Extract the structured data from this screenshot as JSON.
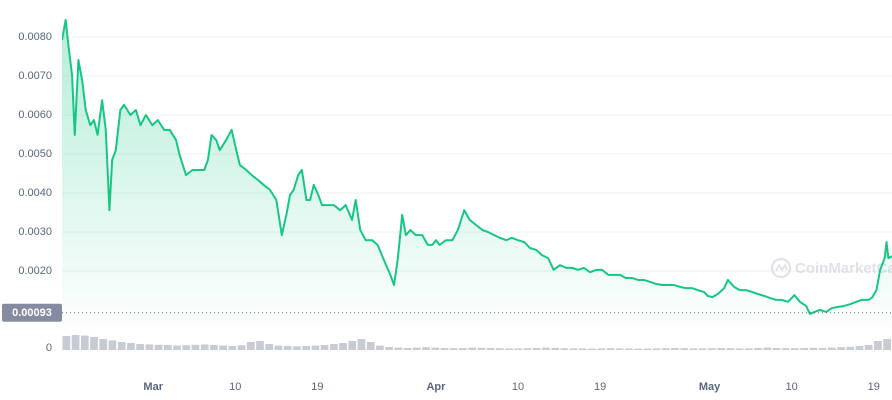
{
  "chart_data": {
    "type": "area",
    "watermark": "CoinMarketCap",
    "color": "#16c784",
    "grid": true,
    "xlim": [
      0,
      91
    ],
    "ylim": [
      0,
      0.0089
    ],
    "yticks": [
      {
        "value": 0.002,
        "label": "0.0020"
      },
      {
        "value": 0.003,
        "label": "0.0030"
      },
      {
        "value": 0.004,
        "label": "0.0040"
      },
      {
        "value": 0.005,
        "label": "0.0050"
      },
      {
        "value": 0.006,
        "label": "0.0060"
      },
      {
        "value": 0.007,
        "label": "0.0070"
      },
      {
        "value": 0.008,
        "label": "0.0080"
      }
    ],
    "xticks": [
      {
        "value": 10,
        "label": "Mar"
      },
      {
        "value": 19,
        "label": "10"
      },
      {
        "value": 28,
        "label": "19"
      },
      {
        "value": 41,
        "label": "Apr"
      },
      {
        "value": 50,
        "label": "10"
      },
      {
        "value": 59,
        "label": "19"
      },
      {
        "value": 71,
        "label": "May"
      },
      {
        "value": 80,
        "label": "10"
      },
      {
        "value": 89,
        "label": "19"
      }
    ],
    "price_marker": 0.00093,
    "x": [
      0,
      0.4,
      0.7,
      1.1,
      1.4,
      1.8,
      2.2,
      2.6,
      3.1,
      3.5,
      3.9,
      4.4,
      4.8,
      5.2,
      5.5,
      5.9,
      6.4,
      6.8,
      7.5,
      8.1,
      8.6,
      9.2,
      9.9,
      10.5,
      11.2,
      11.8,
      12.5,
      12.9,
      13.6,
      14.3,
      14.9,
      15.6,
      16.0,
      16.4,
      16.9,
      17.3,
      18.0,
      18.6,
      19.1,
      19.5,
      20.2,
      20.8,
      21.5,
      22.1,
      22.8,
      23.5,
      24.1,
      24.6,
      25.0,
      25.4,
      25.9,
      26.3,
      26.8,
      27.2,
      27.6,
      28.1,
      28.5,
      29.2,
      29.8,
      30.5,
      31.1,
      31.8,
      32.2,
      32.7,
      33.3,
      34.0,
      34.6,
      35.3,
      36.0,
      36.4,
      36.8,
      37.3,
      37.7,
      38.2,
      38.8,
      39.5,
      40.1,
      40.6,
      41.0,
      41.4,
      42.1,
      42.8,
      43.4,
      44.1,
      44.7,
      45.4,
      46.1,
      46.7,
      47.4,
      48.0,
      48.7,
      49.3,
      50.0,
      50.7,
      51.3,
      52.0,
      52.6,
      53.3,
      53.9,
      54.6,
      55.3,
      55.9,
      56.6,
      57.2,
      57.9,
      58.6,
      59.2,
      59.9,
      60.5,
      61.2,
      61.8,
      62.5,
      63.2,
      63.8,
      64.5,
      65.1,
      65.8,
      66.4,
      67.1,
      67.8,
      68.4,
      69.1,
      69.7,
      70.4,
      70.8,
      71.3,
      71.9,
      72.6,
      73.0,
      73.7,
      74.3,
      75.0,
      75.7,
      76.3,
      77.0,
      77.6,
      78.3,
      78.9,
      79.6,
      80.3,
      80.9,
      81.6,
      82.0,
      82.5,
      83.1,
      83.8,
      84.4,
      85.1,
      85.7,
      86.4,
      87.1,
      87.7,
      88.4,
      88.8,
      89.3,
      89.7,
      90.2,
      90.4,
      90.6,
      91
    ],
    "values": [
      0.00792,
      0.00844,
      0.00779,
      0.00703,
      0.00549,
      0.00741,
      0.0069,
      0.00613,
      0.00574,
      0.00587,
      0.00549,
      0.00638,
      0.00562,
      0.00356,
      0.00485,
      0.0051,
      0.00613,
      0.00626,
      0.006,
      0.00613,
      0.00574,
      0.006,
      0.00574,
      0.00587,
      0.00562,
      0.00562,
      0.00536,
      0.00497,
      0.00446,
      0.00459,
      0.00459,
      0.00459,
      0.00485,
      0.00549,
      0.00536,
      0.0051,
      0.00536,
      0.00562,
      0.0051,
      0.00472,
      0.00459,
      0.00446,
      0.00433,
      0.00421,
      0.00408,
      0.00382,
      0.00292,
      0.00344,
      0.00395,
      0.00408,
      0.00446,
      0.00459,
      0.00382,
      0.00382,
      0.00421,
      0.00395,
      0.00369,
      0.00369,
      0.00369,
      0.00356,
      0.00369,
      0.00331,
      0.00382,
      0.00305,
      0.00279,
      0.00279,
      0.00267,
      0.00228,
      0.0019,
      0.00164,
      0.00228,
      0.00344,
      0.00292,
      0.00305,
      0.00292,
      0.00292,
      0.00267,
      0.00267,
      0.00279,
      0.00267,
      0.00279,
      0.00279,
      0.00305,
      0.00356,
      0.00331,
      0.00318,
      0.00305,
      0.003,
      0.00292,
      0.00285,
      0.00279,
      0.00285,
      0.00279,
      0.00274,
      0.00259,
      0.00254,
      0.00241,
      0.00233,
      0.00203,
      0.00215,
      0.00208,
      0.00208,
      0.00203,
      0.00208,
      0.00197,
      0.00203,
      0.00203,
      0.0019,
      0.0019,
      0.0019,
      0.00182,
      0.00182,
      0.00177,
      0.00177,
      0.00172,
      0.00167,
      0.00164,
      0.00164,
      0.00164,
      0.00159,
      0.00156,
      0.00156,
      0.00151,
      0.00146,
      0.00136,
      0.00133,
      0.00141,
      0.00156,
      0.00177,
      0.00159,
      0.00151,
      0.00151,
      0.00146,
      0.00141,
      0.00136,
      0.00131,
      0.00126,
      0.00126,
      0.00121,
      0.00138,
      0.00121,
      0.0011,
      0.0009,
      0.00095,
      0.001,
      0.00095,
      0.00105,
      0.00108,
      0.0011,
      0.00115,
      0.00121,
      0.00126,
      0.00126,
      0.00131,
      0.00151,
      0.00203,
      0.00233,
      0.00274,
      0.00233,
      0.00238
    ],
    "volume": {
      "color": "#c7cbd3",
      "ylim": [
        0,
        100
      ],
      "yticks": [
        0
      ],
      "values": [
        70,
        75,
        72,
        65,
        55,
        48,
        40,
        35,
        30,
        28,
        26,
        25,
        22,
        24,
        26,
        28,
        25,
        22,
        20,
        24,
        40,
        45,
        30,
        22,
        20,
        18,
        20,
        22,
        25,
        30,
        35,
        45,
        55,
        40,
        22,
        15,
        12,
        10,
        12,
        14,
        12,
        10,
        9,
        10,
        12,
        11,
        10,
        9,
        8,
        8,
        9,
        10,
        12,
        10,
        9,
        8,
        8,
        7,
        8,
        9,
        8,
        8,
        7,
        7,
        8,
        9,
        10,
        9,
        8,
        8,
        9,
        10,
        9,
        8,
        8,
        10,
        12,
        10,
        9,
        9,
        10,
        11,
        10,
        12,
        14,
        16,
        20,
        25,
        45,
        55
      ]
    }
  }
}
